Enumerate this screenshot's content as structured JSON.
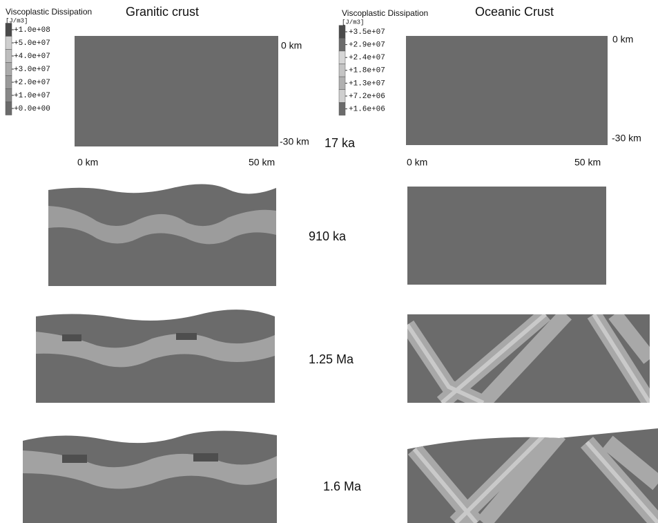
{
  "left": {
    "title": "Granitic crust",
    "legend_title": "Viscoplastic Dissipation",
    "legend_unit": "[J/m3]",
    "legend_labels": [
      "+1.0e+08",
      "+5.0e+07",
      "+4.0e+07",
      "+3.0e+07",
      "+2.0e+07",
      "+1.0e+07",
      "+0.0e+00"
    ],
    "depth_top": "0 km",
    "depth_bottom": "-30 km",
    "x_start": "0 km",
    "x_end": "50 km"
  },
  "right": {
    "title": "Oceanic Crust",
    "legend_title": "Viscoplastic Dissipation",
    "legend_unit": "[J/m3]",
    "legend_labels": [
      "+3.5e+07",
      "+2.9e+07",
      "+2.4e+07",
      "+1.8e+07",
      "+1.3e+07",
      "+7.2e+06",
      "+1.6e+06"
    ],
    "depth_top": "0 km",
    "depth_bottom": "-30 km",
    "x_start": "0 km",
    "x_end": "50 km"
  },
  "times": [
    "17 ka",
    "910 ka",
    "1.25 Ma",
    "1.6 Ma"
  ]
}
